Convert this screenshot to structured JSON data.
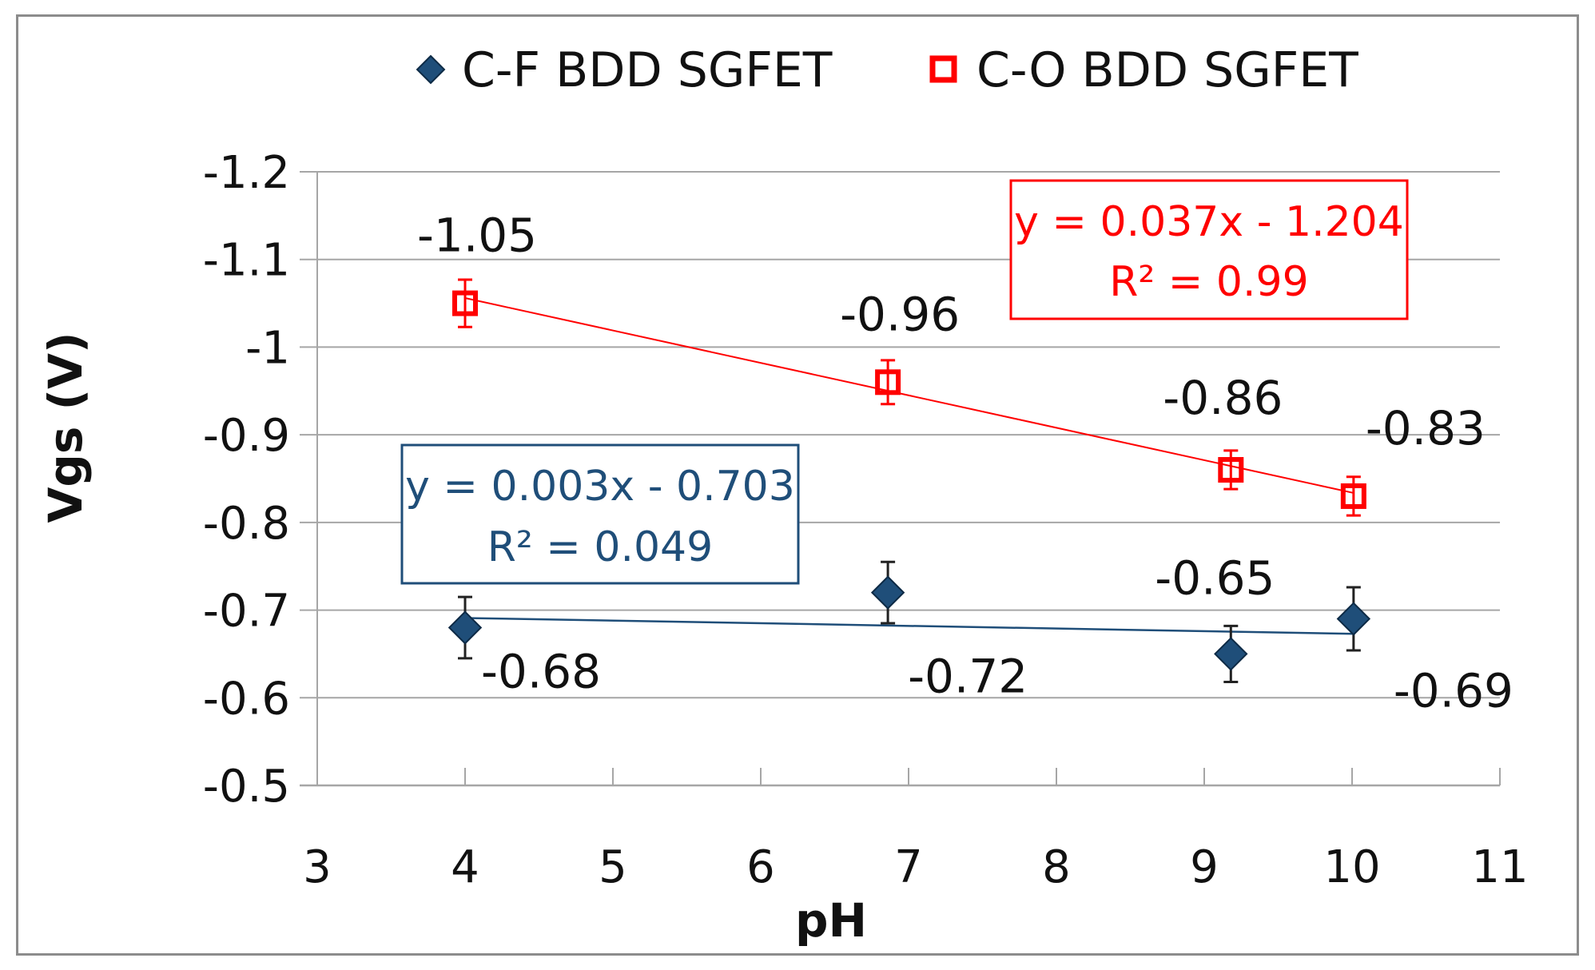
{
  "chart_data": {
    "type": "scatter",
    "xlabel": "pH",
    "ylabel": "Vgs (V)",
    "xlim": [
      3,
      11
    ],
    "ylim": [
      -0.5,
      -1.2
    ],
    "x_ticks": [
      3,
      4,
      5,
      6,
      7,
      8,
      9,
      10,
      11
    ],
    "y_ticks": [
      -1.2,
      -1.1,
      -1,
      -0.9,
      -0.8,
      -0.7,
      -0.6,
      -0.5
    ],
    "x_tick_labels": [
      "3",
      "4",
      "5",
      "6",
      "7",
      "8",
      "9",
      "10",
      "11"
    ],
    "y_tick_labels": [
      "-1.2",
      "-1.1",
      "-1",
      "-0.9",
      "-0.8",
      "-0.7",
      "-0.6",
      "-0.5"
    ],
    "grid": true,
    "legend_position": "top",
    "series": [
      {
        "name": "C-F BDD SGFET",
        "marker": "diamond",
        "color": "#1f4e79",
        "points": [
          {
            "x": 4,
            "y": -0.68,
            "err": 0.035,
            "label": "-0.68"
          },
          {
            "x": 6.86,
            "y": -0.72,
            "err": 0.035,
            "label": "-0.72"
          },
          {
            "x": 9.18,
            "y": -0.65,
            "err": 0.032,
            "label": "-0.65"
          },
          {
            "x": 10.01,
            "y": -0.69,
            "err": 0.036,
            "label": "-0.69"
          }
        ],
        "trendline": {
          "slope": 0.003,
          "intercept": -0.703,
          "x_range": [
            4,
            10.01
          ]
        },
        "equation": "y = 0.003x - 0.703",
        "r2": "R² = 0.049"
      },
      {
        "name": "C-O BDD SGFET",
        "marker": "square-open",
        "color": "#ff0000",
        "points": [
          {
            "x": 4,
            "y": -1.05,
            "err": 0.027,
            "label": "-1.05"
          },
          {
            "x": 6.86,
            "y": -0.96,
            "err": 0.025,
            "label": "-0.96"
          },
          {
            "x": 9.18,
            "y": -0.86,
            "err": 0.022,
            "label": "-0.86"
          },
          {
            "x": 10.01,
            "y": -0.83,
            "err": 0.022,
            "label": "-0.83"
          }
        ],
        "trendline": {
          "slope": 0.037,
          "intercept": -1.204,
          "x_range": [
            4,
            10.01
          ]
        },
        "equation": "y = 0.037x - 1.204",
        "r2": "R² = 0.99"
      }
    ]
  }
}
